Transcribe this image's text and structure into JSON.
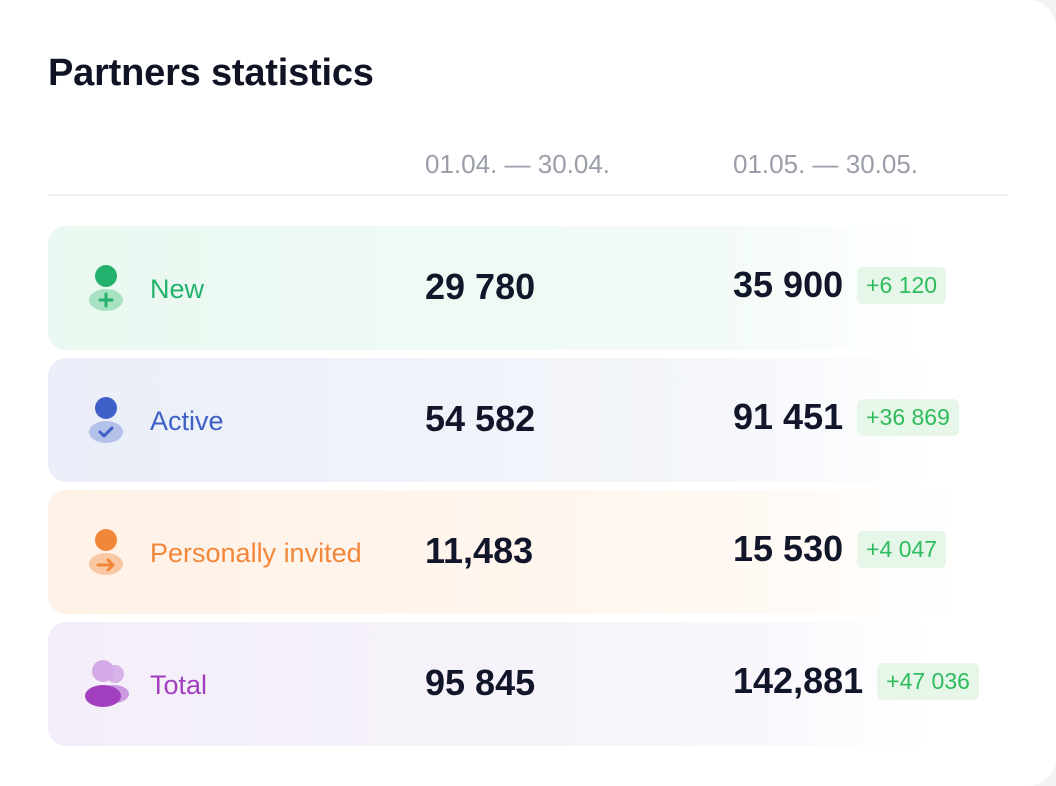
{
  "title": "Partners statistics",
  "columns": {
    "period1": "01.04. — 30.04.",
    "period2": "01.05. — 30.05."
  },
  "rows": [
    {
      "label": "New",
      "icon": "user-plus-icon",
      "period1": "29 780",
      "period2": "35 900",
      "delta": "+6 120",
      "color": "#23b26d"
    },
    {
      "label": "Active",
      "icon": "user-check-icon",
      "period1": "54 582",
      "period2": "91 451",
      "delta": "+36 869",
      "color": "#3e5fc7"
    },
    {
      "label": "Personally invited",
      "icon": "user-arrow-icon",
      "period1": "11,483",
      "period2": "15 530",
      "delta": "+4 047",
      "color": "#f2873a"
    },
    {
      "label": "Total",
      "icon": "users-group-icon",
      "period1": "95 845",
      "period2": "142,881",
      "delta": "+47 036",
      "color": "#a13fbf"
    }
  ],
  "colors": {
    "delta_text": "#2ebc5c",
    "delta_bg": "#e6f7ea",
    "heading": "#0f1324",
    "muted": "#9a9ea8"
  }
}
